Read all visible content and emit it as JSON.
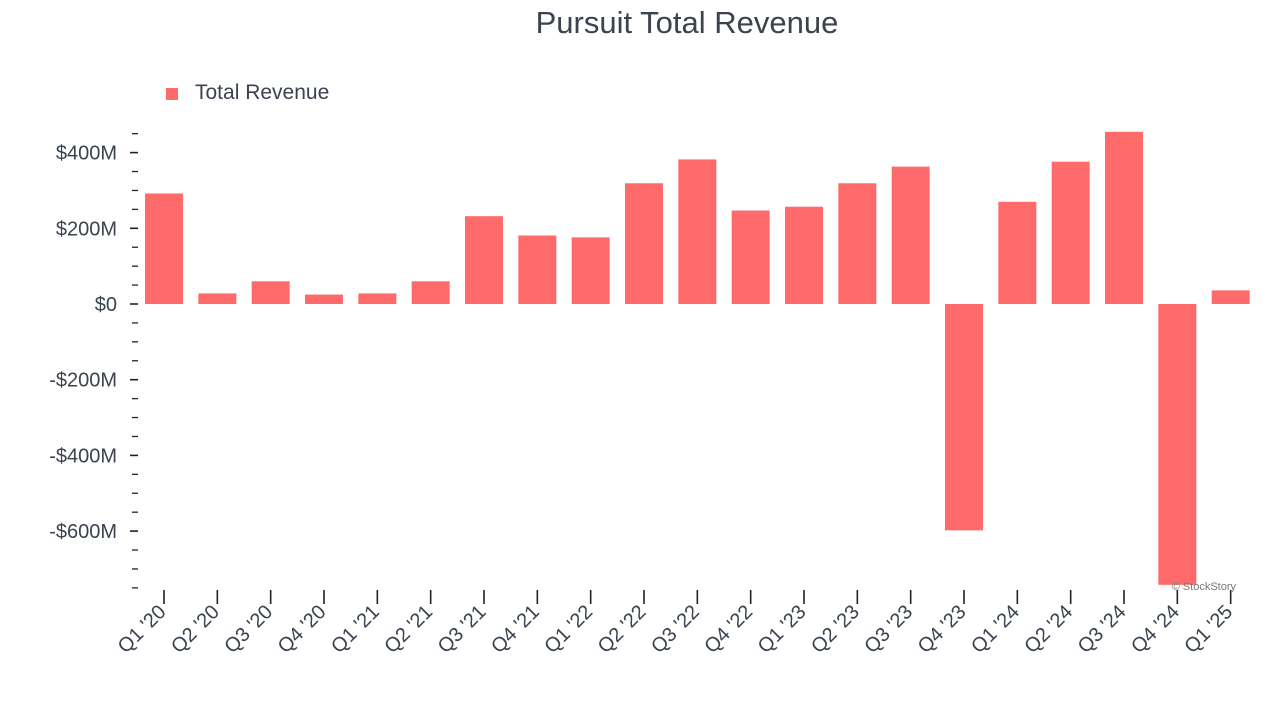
{
  "chart_data": {
    "type": "bar",
    "title": "Pursuit Total Revenue",
    "xlabel": "",
    "ylabel": "",
    "ylim": [
      -750,
      450
    ],
    "yticks": [
      400,
      200,
      0,
      -200,
      -400,
      -600
    ],
    "ytick_labels": [
      "$400M",
      "$200M",
      "$0",
      "-$200M",
      "-$400M",
      "-$600M"
    ],
    "categories": [
      "Q1 '20",
      "Q2 '20",
      "Q3 '20",
      "Q4 '20",
      "Q1 '21",
      "Q2 '21",
      "Q3 '21",
      "Q4 '21",
      "Q1 '22",
      "Q2 '22",
      "Q3 '22",
      "Q4 '22",
      "Q1 '23",
      "Q2 '23",
      "Q3 '23",
      "Q4 '23",
      "Q1 '24",
      "Q2 '24",
      "Q3 '24",
      "Q4 '24",
      "Q1 '25"
    ],
    "series": [
      {
        "name": "Total Revenue",
        "color": "#ff6b6b",
        "values": [
          292,
          28,
          60,
          25,
          28,
          60,
          232,
          181,
          176,
          319,
          382,
          247,
          257,
          319,
          363,
          -598,
          270,
          376,
          455,
          -742,
          36
        ]
      }
    ],
    "legend_position": "top-left",
    "grid": false
  },
  "watermark": "© StockStory"
}
